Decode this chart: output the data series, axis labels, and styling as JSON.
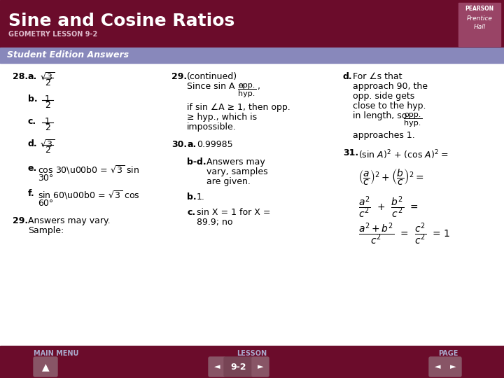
{
  "title": "Sine and Cosine Ratios",
  "subtitle": "GEOMETRY LESSON 9-2",
  "section_label": "Student Edition Answers",
  "header_bg": "#6b0c2b",
  "header_text_color": "#ffffff",
  "subtitle_color": "#ccaaaa",
  "section_bg": "#8888bb",
  "section_text_color": "#ffffff",
  "body_bg": "#ffffff",
  "body_text_color": "#000000",
  "footer_bg": "#6b0c2b",
  "footer_text_color": "#cccccc",
  "nav_button_color": "#994466",
  "nav_button_text": "9-2",
  "pearson_box_color": "#994466"
}
